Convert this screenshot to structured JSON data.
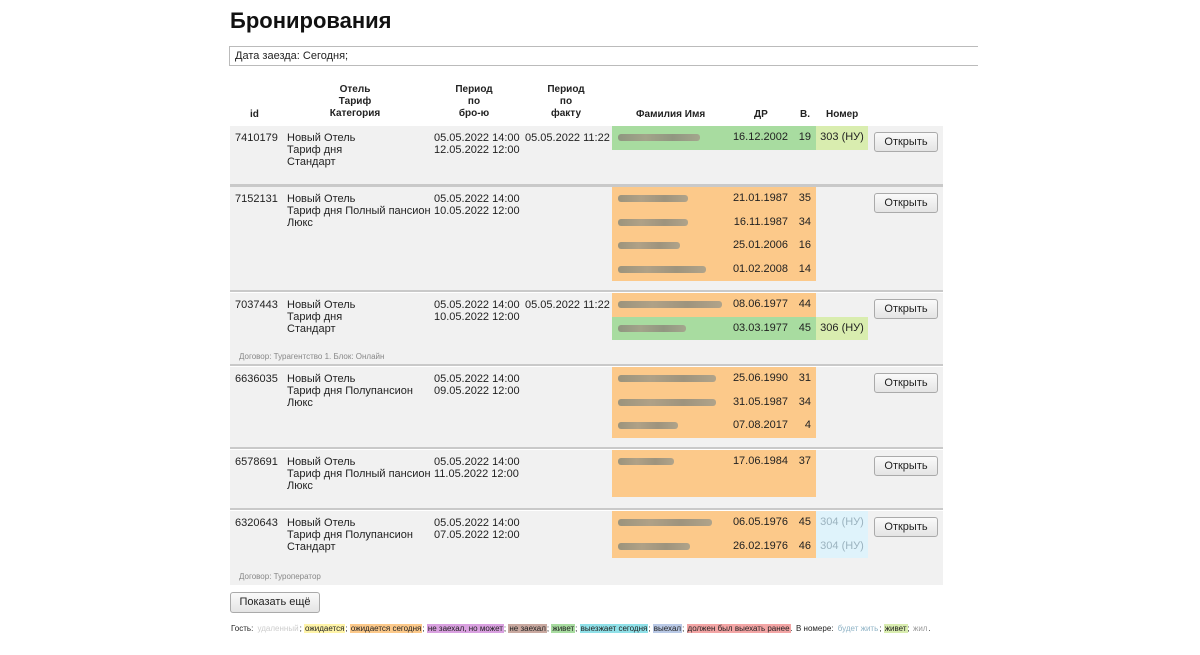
{
  "page": {
    "title": "Бронирования"
  },
  "filter": {
    "text": "Дата заезда: Сегодня;"
  },
  "headers": {
    "id": "id",
    "hotel": [
      "Отель",
      "Тариф",
      "Категория"
    ],
    "period_booking": [
      "Период",
      "по",
      "бро-ю"
    ],
    "period_fact": [
      "Период",
      "по",
      "факту"
    ],
    "name": "Фамилия Имя",
    "dob": "ДР",
    "age": "В.",
    "room": "Номер"
  },
  "bookings": [
    {
      "id": "7410179",
      "hotel": "Новый Отель",
      "tariff": "Тариф дня",
      "category": "Стандарт",
      "booking_from": "05.05.2022 14:00",
      "booking_to": "12.05.2022 12:00",
      "fact_from": "05.05.2022 11:22",
      "guests": [
        {
          "dob": "16.12.2002",
          "age": "19",
          "status": "lives",
          "room": "303 (НУ)"
        }
      ],
      "open_label": "Открыть",
      "note": ""
    },
    {
      "id": "7152131",
      "hotel": "Новый Отель",
      "tariff": "Тариф дня Полный пансион",
      "category": "Люкс",
      "booking_from": "05.05.2022 14:00",
      "booking_to": "10.05.2022 12:00",
      "fact_from": "",
      "guests": [
        {
          "dob": "21.01.1987",
          "age": "35",
          "status": "expected_today",
          "room": ""
        },
        {
          "dob": "16.11.1987",
          "age": "34",
          "status": "expected_today",
          "room": ""
        },
        {
          "dob": "25.01.2006",
          "age": "16",
          "status": "expected_today",
          "room": ""
        },
        {
          "dob": "01.02.2008",
          "age": "14",
          "status": "expected_today",
          "room": ""
        }
      ],
      "open_label": "Открыть",
      "note": ""
    },
    {
      "id": "7037443",
      "hotel": "Новый Отель",
      "tariff": "Тариф дня",
      "category": "Стандарт",
      "booking_from": "05.05.2022 14:00",
      "booking_to": "10.05.2022 12:00",
      "fact_from": "05.05.2022 11:22",
      "guests": [
        {
          "dob": "08.06.1977",
          "age": "44",
          "status": "expected_today",
          "room": ""
        },
        {
          "dob": "03.03.1977",
          "age": "45",
          "status": "lives",
          "room": "306 (НУ)"
        }
      ],
      "open_label": "Открыть",
      "note": "Договор: Турагентство 1.    Блок: Онлайн"
    },
    {
      "id": "6636035",
      "hotel": "Новый Отель",
      "tariff": "Тариф дня Полупансион",
      "category": "Люкс",
      "booking_from": "05.05.2022 14:00",
      "booking_to": "09.05.2022 12:00",
      "fact_from": "",
      "guests": [
        {
          "dob": "25.06.1990",
          "age": "31",
          "status": "expected_today",
          "room": ""
        },
        {
          "dob": "31.05.1987",
          "age": "34",
          "status": "expected_today",
          "room": ""
        },
        {
          "dob": "07.08.2017",
          "age": "4",
          "status": "expected_today",
          "room": ""
        }
      ],
      "open_label": "Открыть",
      "note": ""
    },
    {
      "id": "6578691",
      "hotel": "Новый Отель",
      "tariff": "Тариф дня Полный пансион",
      "category": "Люкс",
      "booking_from": "05.05.2022 14:00",
      "booking_to": "11.05.2022 12:00",
      "fact_from": "",
      "guests": [
        {
          "dob": "17.06.1984",
          "age": "37",
          "status": "expected_today",
          "room": ""
        }
      ],
      "open_label": "Открыть",
      "note": ""
    },
    {
      "id": "6320643",
      "hotel": "Новый Отель",
      "tariff": "Тариф дня Полупансион",
      "category": "Стандарт",
      "booking_from": "05.05.2022 14:00",
      "booking_to": "07.05.2022 12:00",
      "fact_from": "",
      "guests": [
        {
          "dob": "06.05.1976",
          "age": "45",
          "status": "expected_today",
          "room": "304 (НУ)"
        },
        {
          "dob": "26.02.1976",
          "age": "46",
          "status": "expected_today",
          "room": "304 (НУ)"
        }
      ],
      "open_label": "Открыть",
      "note": "Договор: Туроператор"
    }
  ],
  "show_more": "Показать ещё",
  "legend": {
    "guest_label": "Гость:",
    "guest_items": [
      {
        "text": "удаленный",
        "color": "#ffffff",
        "fg": "#cccccc"
      },
      {
        "text": "ожидается",
        "color": "#fff4a8",
        "fg": "#222222"
      },
      {
        "text": "ожидается сегодня",
        "color": "#fcc98a",
        "fg": "#222222"
      },
      {
        "text": "не заехал, но может",
        "color": "#d9a0e0",
        "fg": "#222222"
      },
      {
        "text": "не заехал",
        "color": "#c9a9a0",
        "fg": "#222222"
      },
      {
        "text": "живет",
        "color": "#a8dca0",
        "fg": "#222222"
      },
      {
        "text": "выезжает сегодня",
        "color": "#8fe0e8",
        "fg": "#222222"
      },
      {
        "text": "выехал",
        "color": "#b9c9e6",
        "fg": "#222222"
      },
      {
        "text": "должен был выехать ранее",
        "color": "#f3a5a5",
        "fg": "#222222"
      }
    ],
    "room_label": "В номере:",
    "room_items": [
      {
        "text": "будет жить",
        "color": "#ffffff",
        "fg": "#8fb3c6"
      },
      {
        "text": "живет",
        "color": "#d9edaf",
        "fg": "#222222"
      },
      {
        "text": "жил",
        "color": "#ffffff",
        "fg": "#999999"
      }
    ]
  },
  "colors": {
    "expected_today": "#fcc98a",
    "lives": "#a8dca0",
    "room_lives": "#d9edaf",
    "room_future": "#dff3fb",
    "row_bg": "#f1f1f1"
  }
}
